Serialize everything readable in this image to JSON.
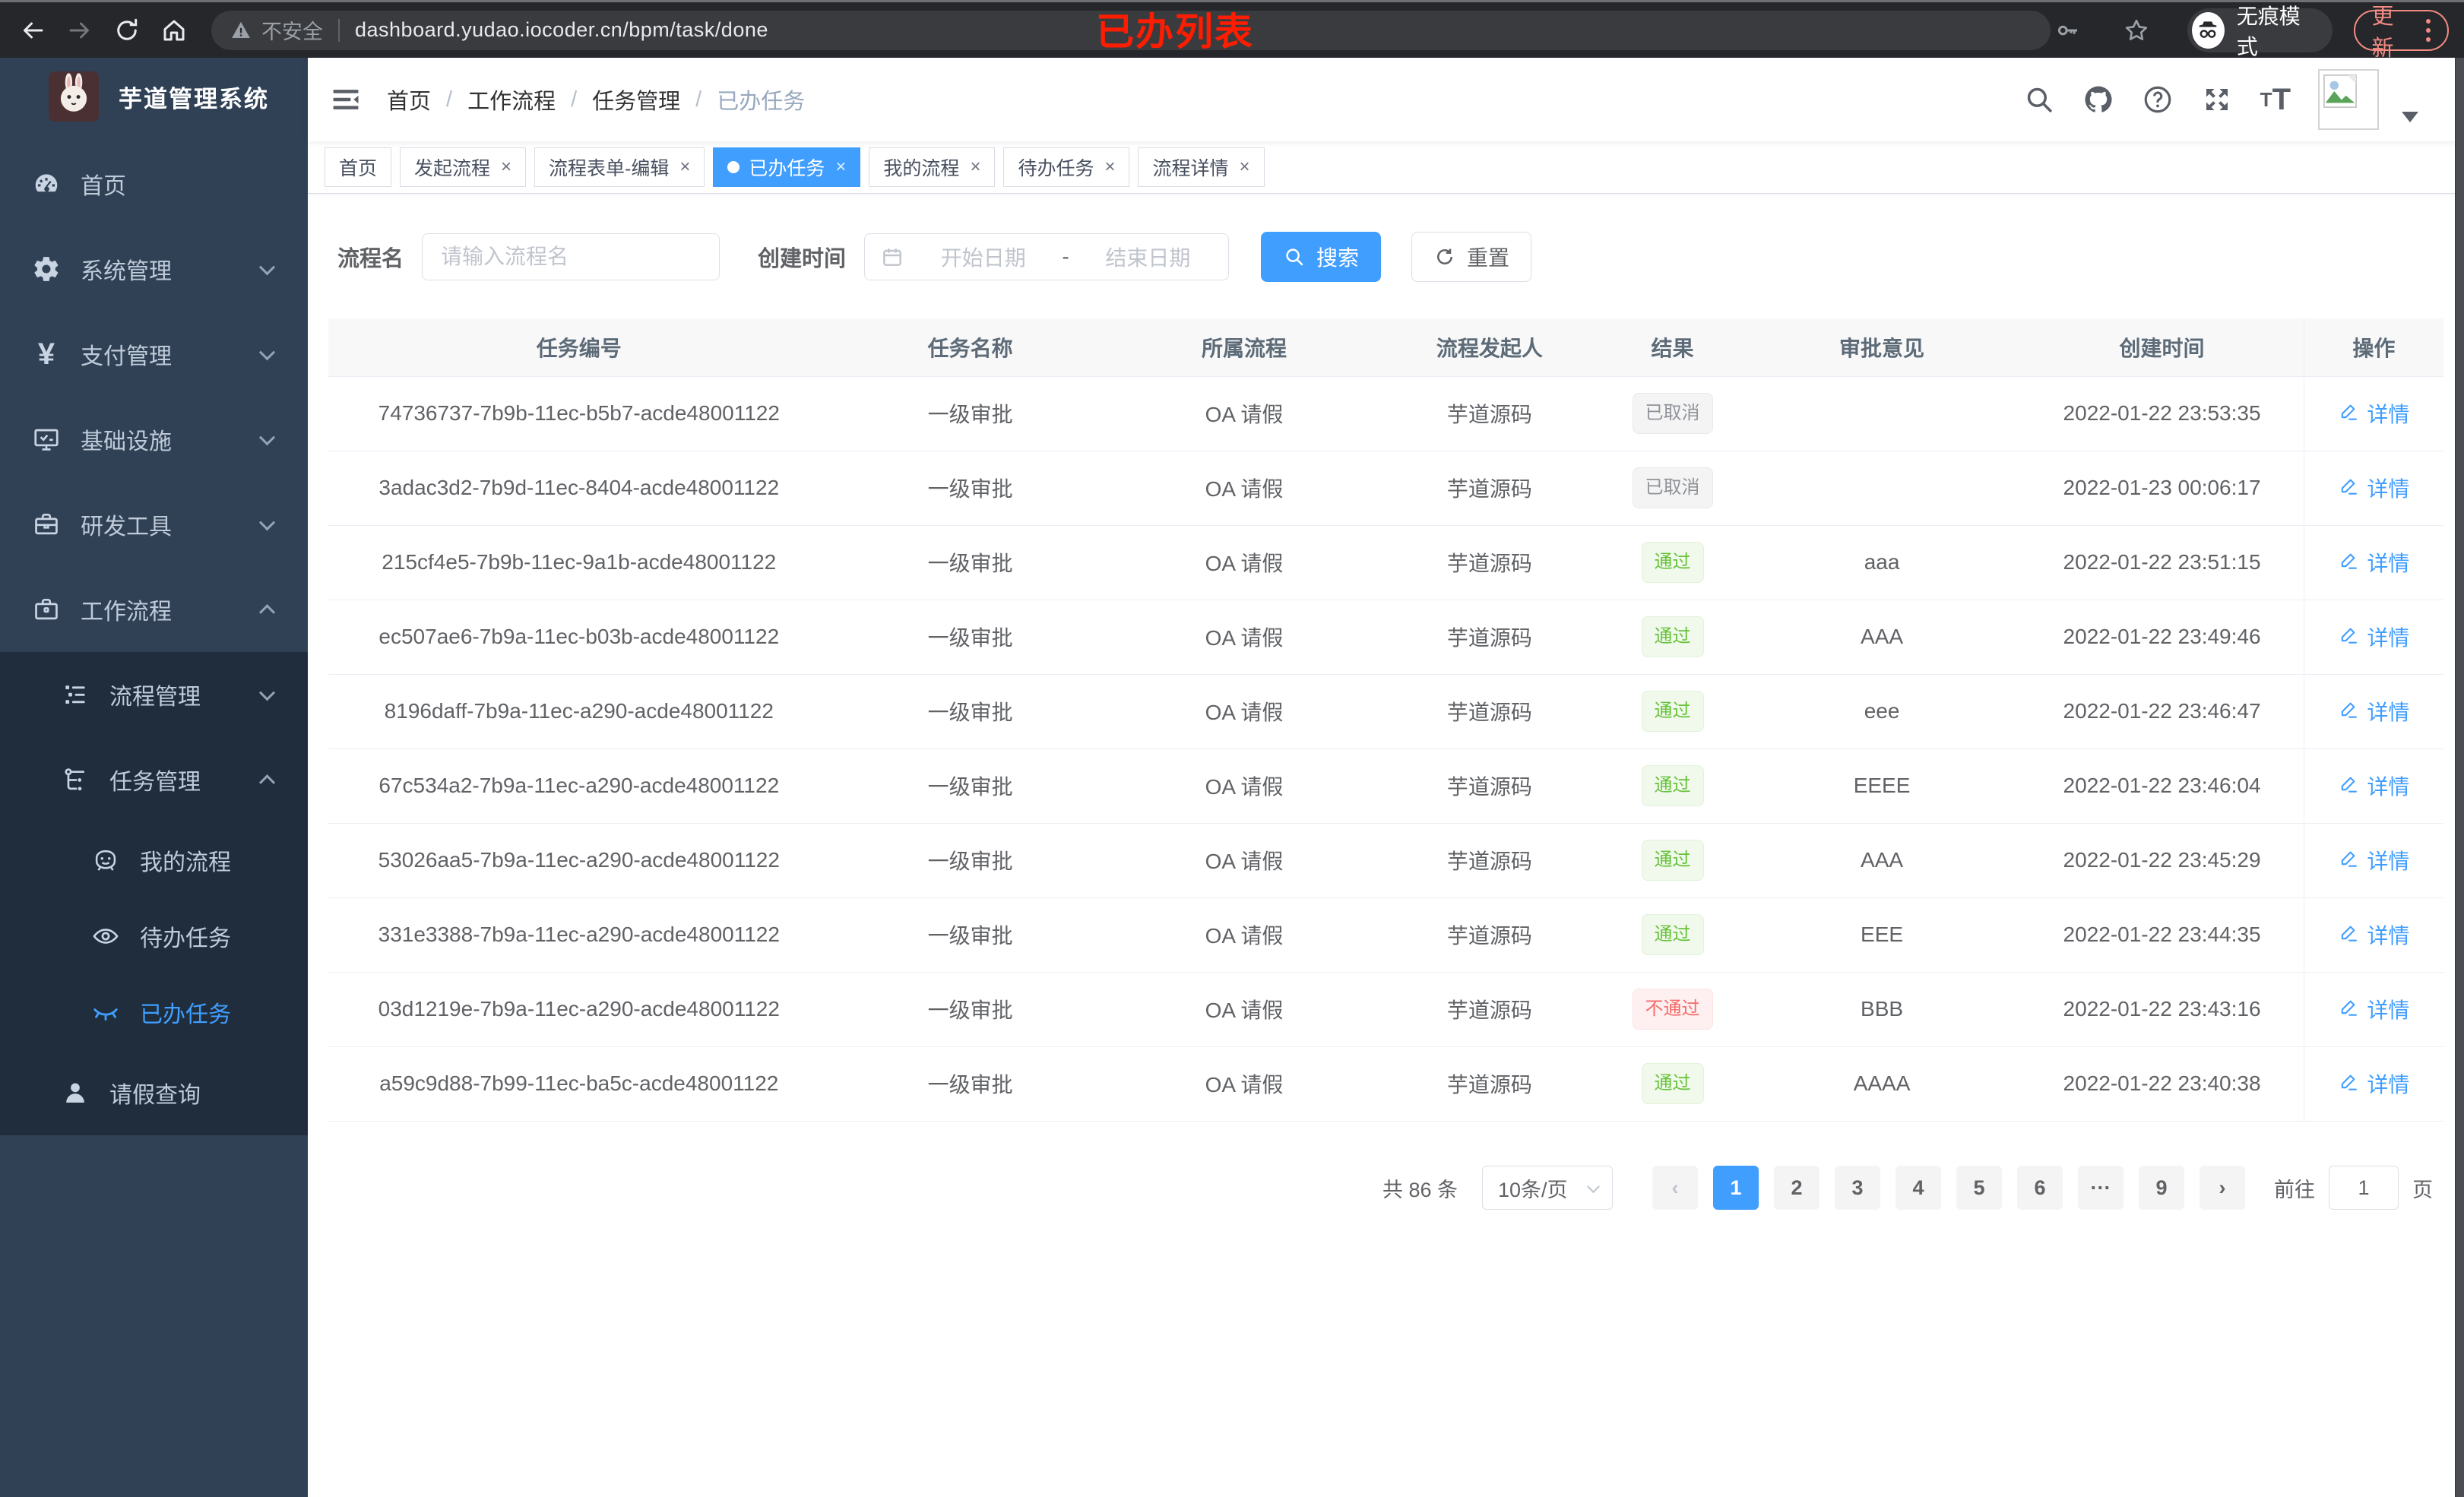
{
  "colors": {
    "accent": "#409eff",
    "success": "#67c23a",
    "danger": "#f56c6c",
    "info": "#909399",
    "sidebar_bg": "#304156",
    "submenu_bg": "#1f2d3d",
    "annotation_red": "#fe1d00",
    "update_salmon": "#f28b82"
  },
  "annotation": {
    "text": "已办列表"
  },
  "browser": {
    "security_warning": "不安全",
    "url": "dashboard.yudao.iocoder.cn/bpm/task/done",
    "incognito_label": "无痕模式",
    "update_label": "更新"
  },
  "sidebar": {
    "app_title": "芋道管理系统",
    "items": [
      {
        "key": "home",
        "label": "首页",
        "icon": "dashboard-icon",
        "level": 1,
        "chevron": "",
        "sub": false,
        "active": false
      },
      {
        "key": "system-mgmt",
        "label": "系统管理",
        "icon": "gear-icon",
        "level": 1,
        "chevron": "down",
        "sub": false,
        "active": false
      },
      {
        "key": "payment-mgmt",
        "label": "支付管理",
        "icon": "yen-icon",
        "level": 1,
        "chevron": "down",
        "sub": false,
        "active": false
      },
      {
        "key": "infrastructure",
        "label": "基础设施",
        "icon": "monitor-icon",
        "level": 1,
        "chevron": "down",
        "sub": false,
        "active": false
      },
      {
        "key": "dev-tools",
        "label": "研发工具",
        "icon": "toolbox-icon",
        "level": 1,
        "chevron": "down",
        "sub": false,
        "active": false
      },
      {
        "key": "workflow",
        "label": "工作流程",
        "icon": "briefcase-icon",
        "level": 1,
        "chevron": "up",
        "sub": false,
        "active": false
      },
      {
        "key": "process-mgmt",
        "label": "流程管理",
        "icon": "tree-list-icon",
        "level": 2,
        "chevron": "down",
        "sub": true,
        "active": false
      },
      {
        "key": "task-mgmt",
        "label": "任务管理",
        "icon": "flow-tree-icon",
        "level": 2,
        "chevron": "up",
        "sub": true,
        "active": false
      },
      {
        "key": "my-process",
        "label": "我的流程",
        "icon": "robot-icon",
        "level": 3,
        "chevron": "",
        "sub": true,
        "active": false
      },
      {
        "key": "todo-tasks",
        "label": "待办任务",
        "icon": "eye-open-icon",
        "level": 3,
        "chevron": "",
        "sub": true,
        "active": false
      },
      {
        "key": "done-tasks",
        "label": "已办任务",
        "icon": "eye-closed-icon",
        "level": 3,
        "chevron": "",
        "sub": true,
        "active": true
      },
      {
        "key": "leave-query",
        "label": "请假查询",
        "icon": "user-icon",
        "level": 2,
        "chevron": "",
        "sub": true,
        "active": false
      }
    ]
  },
  "navbar": {
    "breadcrumb": [
      "首页",
      "工作流程",
      "任务管理",
      "已办任务"
    ],
    "separator": "/"
  },
  "tabs": [
    {
      "key": "home",
      "label": "首页",
      "closable": false,
      "active": false
    },
    {
      "key": "start-process",
      "label": "发起流程",
      "closable": true,
      "active": false
    },
    {
      "key": "form-edit",
      "label": "流程表单-编辑",
      "closable": true,
      "active": false
    },
    {
      "key": "done-tasks",
      "label": "已办任务",
      "closable": true,
      "active": true
    },
    {
      "key": "my-process",
      "label": "我的流程",
      "closable": true,
      "active": false
    },
    {
      "key": "todo-tasks",
      "label": "待办任务",
      "closable": true,
      "active": false
    },
    {
      "key": "process-detail",
      "label": "流程详情",
      "closable": true,
      "active": false
    }
  ],
  "filter": {
    "name_label": "流程名",
    "name_placeholder": "请输入流程名",
    "time_label": "创建时间",
    "start_placeholder": "开始日期",
    "range_separator": "-",
    "end_placeholder": "结束日期",
    "search_label": "搜索",
    "reset_label": "重置"
  },
  "table": {
    "headers": [
      "任务编号",
      "任务名称",
      "所属流程",
      "流程发起人",
      "结果",
      "审批意见",
      "创建时间",
      "操作"
    ],
    "action_label": "详情",
    "rows": [
      {
        "id": "74736737-7b9b-11ec-b5b7-acde48001122",
        "name": "一级审批",
        "process": "OA 请假",
        "starter": "芋道源码",
        "result": "已取消",
        "result_type": "info",
        "comment": "",
        "created": "2022-01-22 23:53:35"
      },
      {
        "id": "3adac3d2-7b9d-11ec-8404-acde48001122",
        "name": "一级审批",
        "process": "OA 请假",
        "starter": "芋道源码",
        "result": "已取消",
        "result_type": "info",
        "comment": "",
        "created": "2022-01-23 00:06:17"
      },
      {
        "id": "215cf4e5-7b9b-11ec-9a1b-acde48001122",
        "name": "一级审批",
        "process": "OA 请假",
        "starter": "芋道源码",
        "result": "通过",
        "result_type": "success",
        "comment": "aaa",
        "created": "2022-01-22 23:51:15"
      },
      {
        "id": "ec507ae6-7b9a-11ec-b03b-acde48001122",
        "name": "一级审批",
        "process": "OA 请假",
        "starter": "芋道源码",
        "result": "通过",
        "result_type": "success",
        "comment": "AAA",
        "created": "2022-01-22 23:49:46"
      },
      {
        "id": "8196daff-7b9a-11ec-a290-acde48001122",
        "name": "一级审批",
        "process": "OA 请假",
        "starter": "芋道源码",
        "result": "通过",
        "result_type": "success",
        "comment": "eee",
        "created": "2022-01-22 23:46:47"
      },
      {
        "id": "67c534a2-7b9a-11ec-a290-acde48001122",
        "name": "一级审批",
        "process": "OA 请假",
        "starter": "芋道源码",
        "result": "通过",
        "result_type": "success",
        "comment": "EEEE",
        "created": "2022-01-22 23:46:04"
      },
      {
        "id": "53026aa5-7b9a-11ec-a290-acde48001122",
        "name": "一级审批",
        "process": "OA 请假",
        "starter": "芋道源码",
        "result": "通过",
        "result_type": "success",
        "comment": "AAA",
        "created": "2022-01-22 23:45:29"
      },
      {
        "id": "331e3388-7b9a-11ec-a290-acde48001122",
        "name": "一级审批",
        "process": "OA 请假",
        "starter": "芋道源码",
        "result": "通过",
        "result_type": "success",
        "comment": "EEE",
        "created": "2022-01-22 23:44:35"
      },
      {
        "id": "03d1219e-7b9a-11ec-a290-acde48001122",
        "name": "一级审批",
        "process": "OA 请假",
        "starter": "芋道源码",
        "result": "不通过",
        "result_type": "danger",
        "comment": "BBB",
        "created": "2022-01-22 23:43:16"
      },
      {
        "id": "a59c9d88-7b99-11ec-ba5c-acde48001122",
        "name": "一级审批",
        "process": "OA 请假",
        "starter": "芋道源码",
        "result": "通过",
        "result_type": "success",
        "comment": "AAAA",
        "created": "2022-01-22 23:40:38"
      }
    ]
  },
  "pagination": {
    "total": "共 86 条",
    "page_size": "10条/页",
    "pages": [
      "1",
      "2",
      "3",
      "4",
      "5",
      "6",
      "···",
      "9"
    ],
    "active_page": "1",
    "goto_label": "前往",
    "goto_value": "1",
    "page_unit": "页"
  }
}
